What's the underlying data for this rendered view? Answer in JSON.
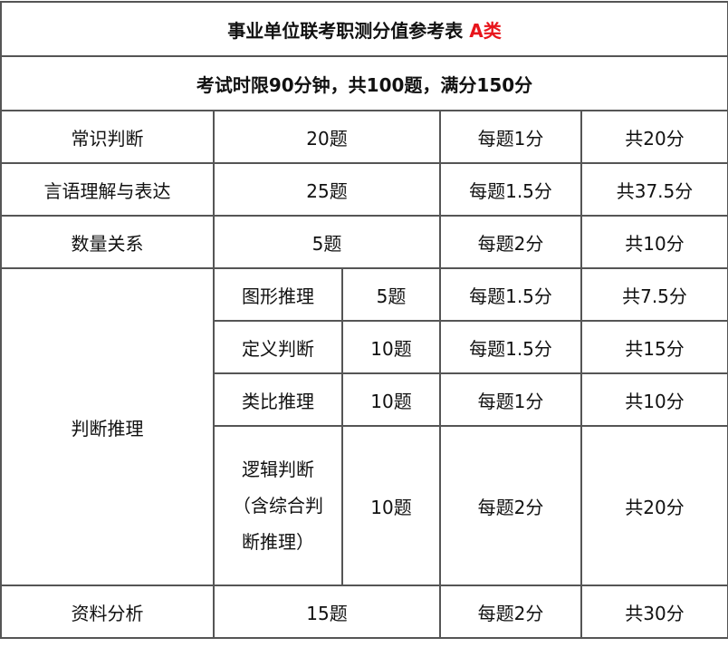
{
  "title": {
    "main": "事业单位联考职测分值参考表",
    "highlight": "A类"
  },
  "subtitle": "考试时限90分钟，共100题，满分150分",
  "rows": [
    {
      "subject": "常识判断",
      "count": "20题",
      "per": "每题1分",
      "total": "共20分"
    },
    {
      "subject": "言语理解与表达",
      "count": "25题",
      "per": "每题1.5分",
      "total": "共37.5分"
    },
    {
      "subject": "数量关系",
      "count": "5题",
      "per": "每题2分",
      "total": "共10分"
    }
  ],
  "reasoning": {
    "subject": "判断推理",
    "items": [
      {
        "name": "图形推理",
        "count": "5题",
        "per": "每题1.5分",
        "total": "共7.5分"
      },
      {
        "name": "定义判断",
        "count": "10题",
        "per": "每题1.5分",
        "total": "共15分"
      },
      {
        "name": "类比推理",
        "count": "10题",
        "per": "每题1分",
        "total": "共10分"
      },
      {
        "name": "逻辑判断（含综合判断推理）",
        "count": "10题",
        "per": "每题2分",
        "total": "共20分"
      }
    ]
  },
  "last": {
    "subject": "资料分析",
    "count": "15题",
    "per": "每题2分",
    "total": "共30分"
  },
  "colors": {
    "highlight": "#e8141b",
    "border": "#555555"
  }
}
